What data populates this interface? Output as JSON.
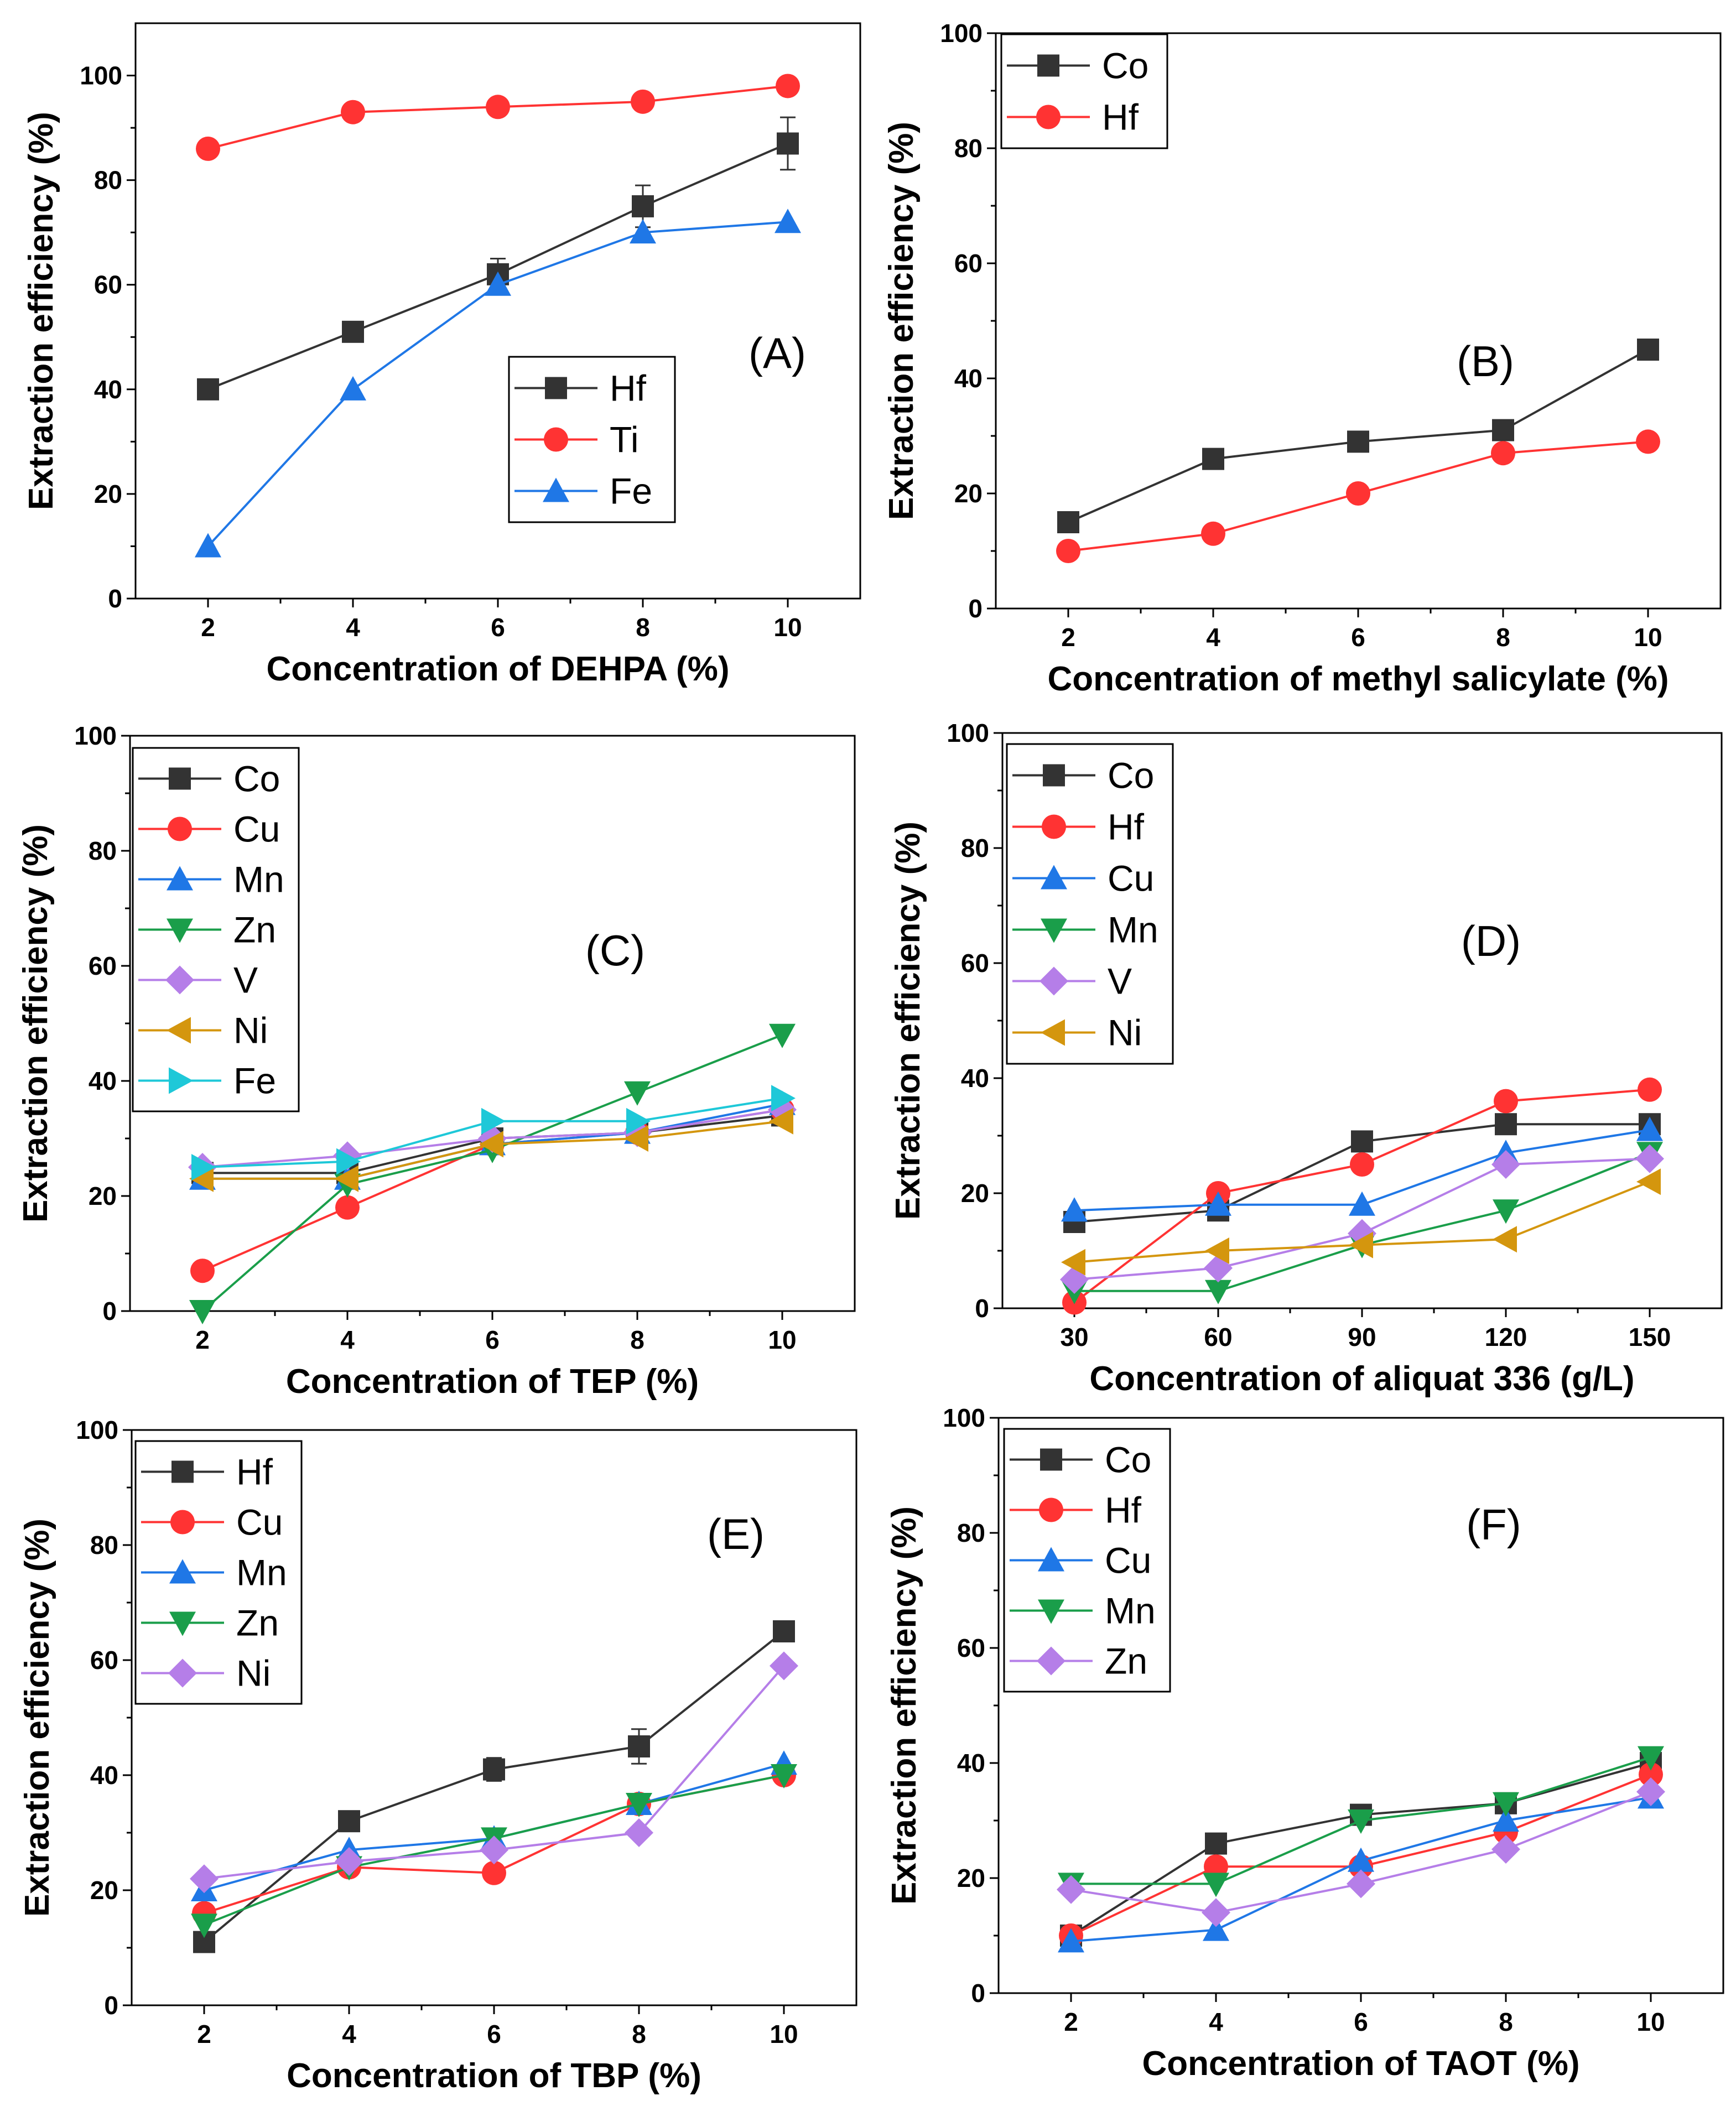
{
  "figure": {
    "panel_count": 6
  },
  "chart_data": [
    {
      "id": "A",
      "type": "line",
      "panel_label": "(A)",
      "xlabel": "Concentration of DEHPA (%)",
      "ylabel": "Extraction efficiency (%)",
      "x": [
        2,
        4,
        6,
        8,
        10
      ],
      "xlim": [
        1,
        11
      ],
      "ylim": [
        0,
        110
      ],
      "yticks": [
        0,
        20,
        40,
        60,
        80,
        100
      ],
      "grid": false,
      "legend_position": "center-right",
      "series": [
        {
          "name": "Hf",
          "color": "#333333",
          "marker": "square",
          "values": [
            40,
            51,
            62,
            75,
            87
          ],
          "errors": [
            0,
            0,
            3,
            4,
            5
          ]
        },
        {
          "name": "Ti",
          "color": "#ff3333",
          "marker": "circle",
          "values": [
            86,
            93,
            94,
            95,
            98
          ],
          "errors": [
            0,
            0,
            0,
            0,
            0
          ]
        },
        {
          "name": "Fe",
          "color": "#1f77e6",
          "marker": "triangle-up",
          "values": [
            10,
            40,
            60,
            70,
            72
          ],
          "errors": [
            0,
            0,
            0,
            0,
            0
          ]
        }
      ]
    },
    {
      "id": "B",
      "type": "line",
      "panel_label": "(B)",
      "xlabel": "Concentration of methyl salicylate (%)",
      "ylabel": "Extraction efficiency (%)",
      "x": [
        2,
        4,
        6,
        8,
        10
      ],
      "xlim": [
        1,
        11
      ],
      "ylim": [
        0,
        100
      ],
      "yticks": [
        0,
        20,
        40,
        60,
        80,
        100
      ],
      "grid": false,
      "legend_position": "top-left",
      "series": [
        {
          "name": "Co",
          "color": "#333333",
          "marker": "square",
          "values": [
            15,
            26,
            29,
            31,
            45
          ],
          "errors": [
            0,
            0,
            0,
            0,
            0
          ]
        },
        {
          "name": "Hf",
          "color": "#ff3333",
          "marker": "circle",
          "values": [
            10,
            13,
            20,
            27,
            29
          ],
          "errors": [
            0,
            0,
            0,
            0,
            0
          ]
        }
      ]
    },
    {
      "id": "C",
      "type": "line",
      "panel_label": "(C)",
      "xlabel": "Concentration of TEP (%)",
      "ylabel": "Extraction efficiency (%)",
      "x": [
        2,
        4,
        6,
        8,
        10
      ],
      "xlim": [
        1,
        11
      ],
      "ylim": [
        0,
        100
      ],
      "yticks": [
        0,
        20,
        40,
        60,
        80,
        100
      ],
      "grid": false,
      "legend_position": "top-left",
      "series": [
        {
          "name": "Co",
          "color": "#333333",
          "marker": "square",
          "values": [
            24,
            24,
            30,
            31,
            34
          ],
          "errors": [
            0,
            0,
            0,
            0,
            0
          ]
        },
        {
          "name": "Cu",
          "color": "#ff3333",
          "marker": "circle",
          "values": [
            7,
            18,
            29,
            31,
            35
          ],
          "errors": [
            0,
            0,
            0,
            0,
            0
          ]
        },
        {
          "name": "Mn",
          "color": "#1f77e6",
          "marker": "triangle-up",
          "values": [
            23,
            23,
            29,
            31,
            36
          ],
          "errors": [
            0,
            0,
            0,
            0,
            0
          ]
        },
        {
          "name": "Zn",
          "color": "#1a9e4a",
          "marker": "triangle-down",
          "values": [
            0,
            22,
            28,
            38,
            48
          ],
          "errors": [
            0,
            0,
            0,
            0,
            0
          ]
        },
        {
          "name": "V",
          "color": "#b57ee8",
          "marker": "diamond",
          "values": [
            25,
            27,
            30,
            31,
            35
          ],
          "errors": [
            0,
            0,
            0,
            0,
            0
          ]
        },
        {
          "name": "Ni",
          "color": "#d4960e",
          "marker": "triangle-left",
          "values": [
            23,
            23,
            29,
            30,
            33
          ],
          "errors": [
            0,
            0,
            0,
            0,
            0
          ]
        },
        {
          "name": "Fe",
          "color": "#1ec8d8",
          "marker": "triangle-right",
          "values": [
            25,
            26,
            33,
            33,
            37
          ],
          "errors": [
            0,
            0,
            0,
            0,
            0
          ]
        }
      ]
    },
    {
      "id": "D",
      "type": "line",
      "panel_label": "(D)",
      "xlabel": "Concentration of aliquat 336 (g/L)",
      "ylabel": "Extraction efficiency (%)",
      "x": [
        30,
        60,
        90,
        120,
        150
      ],
      "xlim": [
        15,
        165
      ],
      "ylim": [
        0,
        100
      ],
      "yticks": [
        0,
        20,
        40,
        60,
        80,
        100
      ],
      "grid": false,
      "legend_position": "top-left",
      "series": [
        {
          "name": "Co",
          "color": "#333333",
          "marker": "square",
          "values": [
            15,
            17,
            29,
            32,
            32
          ],
          "errors": [
            0,
            0,
            0,
            0,
            0
          ]
        },
        {
          "name": "Hf",
          "color": "#ff3333",
          "marker": "circle",
          "values": [
            1,
            20,
            25,
            36,
            38
          ],
          "errors": [
            0,
            0,
            0,
            0,
            0
          ]
        },
        {
          "name": "Cu",
          "color": "#1f77e6",
          "marker": "triangle-up",
          "values": [
            17,
            18,
            18,
            27,
            31
          ],
          "errors": [
            0,
            0,
            0,
            0,
            0
          ]
        },
        {
          "name": "Mn",
          "color": "#1a9e4a",
          "marker": "triangle-down",
          "values": [
            3,
            3,
            11,
            17,
            27
          ],
          "errors": [
            0,
            0,
            0,
            0,
            0
          ]
        },
        {
          "name": "V",
          "color": "#b57ee8",
          "marker": "diamond",
          "values": [
            5,
            7,
            13,
            25,
            26
          ],
          "errors": [
            0,
            0,
            0,
            0,
            0
          ]
        },
        {
          "name": "Ni",
          "color": "#d4960e",
          "marker": "triangle-left",
          "values": [
            8,
            10,
            11,
            12,
            22
          ],
          "errors": [
            0,
            0,
            0,
            0,
            0
          ]
        }
      ]
    },
    {
      "id": "E",
      "type": "line",
      "panel_label": "(E)",
      "xlabel": "Concentration of TBP (%)",
      "ylabel": "Extraction efficiency (%)",
      "x": [
        2,
        4,
        6,
        8,
        10
      ],
      "xlim": [
        1,
        11
      ],
      "ylim": [
        0,
        100
      ],
      "yticks": [
        0,
        20,
        40,
        60,
        80,
        100
      ],
      "grid": false,
      "legend_position": "top-left",
      "series": [
        {
          "name": "Hf",
          "color": "#333333",
          "marker": "square",
          "values": [
            11,
            32,
            41,
            45,
            65
          ],
          "errors": [
            0,
            1,
            2,
            3,
            0
          ]
        },
        {
          "name": "Cu",
          "color": "#ff3333",
          "marker": "circle",
          "values": [
            16,
            24,
            23,
            35,
            40
          ],
          "errors": [
            0,
            0,
            0,
            0,
            0
          ]
        },
        {
          "name": "Mn",
          "color": "#1f77e6",
          "marker": "triangle-up",
          "values": [
            20,
            27,
            29,
            35,
            42
          ],
          "errors": [
            0,
            0,
            0,
            0,
            0
          ]
        },
        {
          "name": "Zn",
          "color": "#1a9e4a",
          "marker": "triangle-down",
          "values": [
            14,
            24,
            29,
            35,
            40
          ],
          "errors": [
            0,
            0,
            0,
            0,
            0
          ]
        },
        {
          "name": "Ni",
          "color": "#b57ee8",
          "marker": "diamond",
          "values": [
            22,
            25,
            27,
            30,
            59
          ],
          "errors": [
            0,
            0,
            0,
            0,
            0
          ]
        }
      ]
    },
    {
      "id": "F",
      "type": "line",
      "panel_label": "(F)",
      "xlabel": "Concentration of TAOT (%)",
      "ylabel": "Extraction efficiency (%)",
      "x": [
        2,
        4,
        6,
        8,
        10
      ],
      "xlim": [
        1,
        11
      ],
      "ylim": [
        0,
        100
      ],
      "yticks": [
        0,
        20,
        40,
        60,
        80,
        100
      ],
      "grid": false,
      "legend_position": "top-left",
      "series": [
        {
          "name": "Co",
          "color": "#333333",
          "marker": "square",
          "values": [
            10,
            26,
            31,
            33,
            40
          ],
          "errors": [
            0,
            0,
            0,
            0,
            0
          ]
        },
        {
          "name": "Hf",
          "color": "#ff3333",
          "marker": "circle",
          "values": [
            10,
            22,
            22,
            28,
            38
          ],
          "errors": [
            0,
            0,
            0,
            0,
            0
          ]
        },
        {
          "name": "Cu",
          "color": "#1f77e6",
          "marker": "triangle-up",
          "values": [
            9,
            11,
            23,
            30,
            34
          ],
          "errors": [
            0,
            0,
            0,
            0,
            0
          ]
        },
        {
          "name": "Mn",
          "color": "#1a9e4a",
          "marker": "triangle-down",
          "values": [
            19,
            19,
            30,
            33,
            41
          ],
          "errors": [
            0,
            0,
            0,
            0,
            0
          ]
        },
        {
          "name": "Zn",
          "color": "#b57ee8",
          "marker": "diamond",
          "values": [
            18,
            14,
            19,
            25,
            35
          ],
          "errors": [
            0,
            0,
            0,
            0,
            0
          ]
        }
      ]
    }
  ]
}
